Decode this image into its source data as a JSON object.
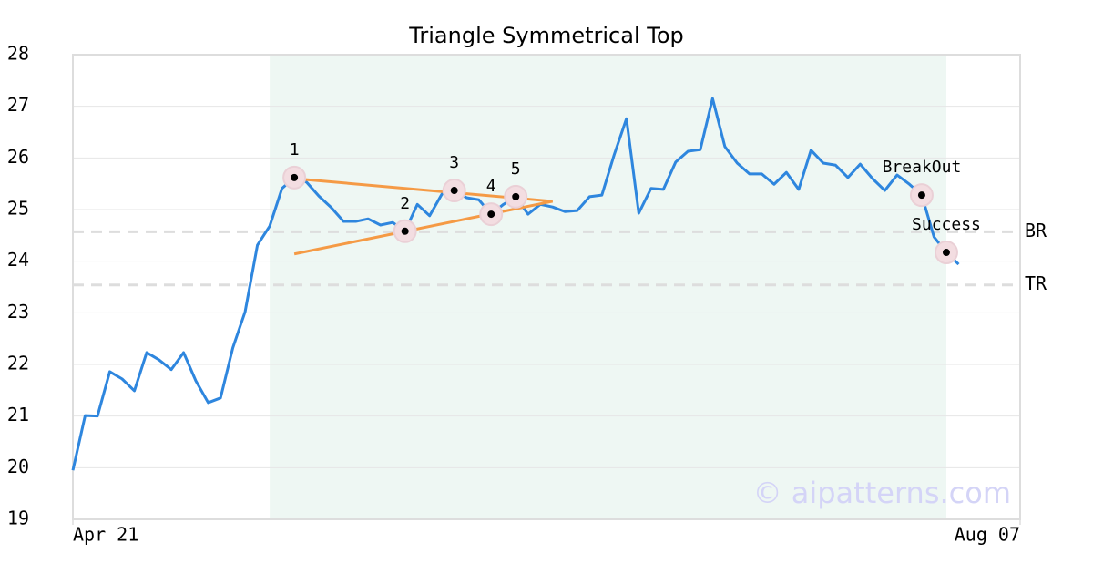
{
  "chart_data": {
    "type": "line",
    "title": "Triangle Symmetrical Top",
    "x": [
      0,
      1,
      2,
      3,
      4,
      5,
      6,
      7,
      8,
      9,
      10,
      11,
      12,
      13,
      14,
      15,
      16,
      17,
      18,
      19,
      20,
      21,
      22,
      23,
      24,
      25,
      26,
      27,
      28,
      29,
      30,
      31,
      32,
      33,
      34,
      35,
      36,
      37,
      38,
      39,
      40,
      41,
      42,
      43,
      44,
      45,
      46,
      47,
      48,
      49,
      50,
      51,
      52,
      53,
      54,
      55,
      56,
      57,
      58,
      59,
      60,
      61,
      62,
      63,
      64,
      65,
      66,
      67,
      68,
      69,
      70,
      71,
      72
    ],
    "values": [
      19.95,
      21.01,
      21.0,
      21.86,
      21.72,
      21.49,
      22.23,
      22.09,
      21.9,
      22.23,
      21.68,
      21.26,
      21.35,
      22.32,
      23.02,
      24.31,
      24.68,
      25.41,
      25.62,
      25.53,
      25.26,
      25.04,
      24.77,
      24.77,
      24.82,
      24.7,
      24.75,
      24.58,
      25.1,
      24.88,
      25.3,
      25.37,
      25.23,
      25.19,
      24.91,
      25.1,
      25.25,
      24.91,
      25.1,
      25.05,
      24.96,
      24.98,
      25.25,
      25.28,
      26.06,
      26.76,
      24.93,
      25.41,
      25.39,
      25.92,
      26.13,
      26.16,
      27.15,
      26.22,
      25.9,
      25.69,
      25.69,
      25.49,
      25.72,
      25.39,
      26.15,
      25.9,
      25.86,
      25.62,
      25.88,
      25.6,
      25.37,
      25.67,
      25.49,
      25.28,
      24.47,
      24.17,
      23.94
    ],
    "color": "#2e86de",
    "xlim": [
      0,
      77
    ],
    "xticks": [
      {
        "value": 0,
        "label": "Apr 21"
      },
      {
        "value": 77,
        "label": "Aug 07"
      }
    ],
    "ylim": [
      19,
      28
    ],
    "yticks": [
      19,
      20,
      21,
      22,
      23,
      24,
      25,
      26,
      27,
      28
    ],
    "grid": true,
    "highlight_range": [
      16,
      71
    ],
    "highlight_color": "#eef7f3",
    "hlines": [
      {
        "value": 24.57,
        "label": "BR"
      },
      {
        "value": 23.54,
        "label": "TR"
      }
    ],
    "trendline_color": "#f59a45",
    "trendlines": [
      {
        "x": [
          18,
          39
        ],
        "values": [
          25.6,
          25.16
        ]
      },
      {
        "x": [
          18,
          39
        ],
        "values": [
          24.14,
          25.16
        ]
      }
    ],
    "pivots": [
      {
        "x": 18,
        "label": "1"
      },
      {
        "x": 27,
        "label": "2"
      },
      {
        "x": 31,
        "label": "3"
      },
      {
        "x": 34,
        "label": "4"
      },
      {
        "x": 36,
        "label": "5"
      },
      {
        "x": 69,
        "label": "BreakOut"
      },
      {
        "x": 71,
        "label": "Success"
      }
    ],
    "watermark": "© aipatterns.com"
  }
}
